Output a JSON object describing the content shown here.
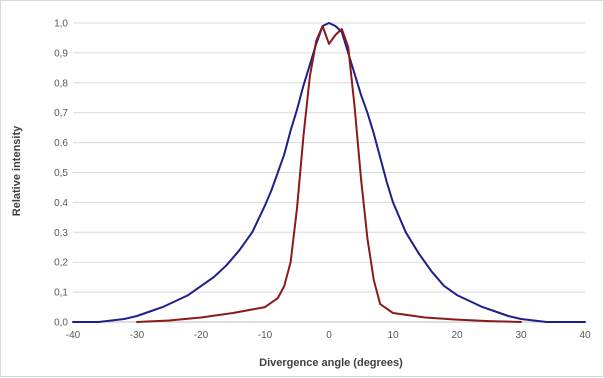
{
  "chart_data": {
    "type": "line",
    "title": "",
    "xlabel": "Divergence angle (degrees)",
    "ylabel": "Relative intensity",
    "xlim": [
      -40,
      40
    ],
    "ylim": [
      0,
      1
    ],
    "x_ticks": [
      "-40",
      "-30",
      "-20",
      "-10",
      "0",
      "10",
      "20",
      "30",
      "40"
    ],
    "y_ticks": [
      "0,0",
      "0,1",
      "0,2",
      "0,3",
      "0,4",
      "0,5",
      "0,6",
      "0,7",
      "0,8",
      "0,9",
      "1,0"
    ],
    "grid": "horizontal",
    "legend": "none",
    "series": [
      {
        "color": "#1f1f8c",
        "x": [
          -40,
          -36,
          -34,
          -32,
          -30,
          -28,
          -26,
          -24,
          -22,
          -20,
          -18,
          -16,
          -14,
          -12,
          -10,
          -9,
          -8,
          -7,
          -6,
          -5,
          -4,
          -3,
          -2,
          -1,
          0,
          1,
          2,
          3,
          4,
          5,
          6,
          7,
          8,
          9,
          10,
          12,
          14,
          16,
          18,
          20,
          22,
          24,
          26,
          28,
          30,
          32,
          34,
          36,
          40
        ],
        "y": [
          0.0,
          0.0,
          0.005,
          0.01,
          0.02,
          0.035,
          0.05,
          0.07,
          0.09,
          0.12,
          0.15,
          0.19,
          0.24,
          0.3,
          0.39,
          0.44,
          0.5,
          0.56,
          0.64,
          0.71,
          0.79,
          0.86,
          0.93,
          0.99,
          1.0,
          0.99,
          0.97,
          0.9,
          0.83,
          0.76,
          0.7,
          0.63,
          0.55,
          0.47,
          0.4,
          0.3,
          0.23,
          0.17,
          0.12,
          0.09,
          0.07,
          0.05,
          0.035,
          0.02,
          0.01,
          0.005,
          0.0,
          0.0,
          0.0
        ]
      },
      {
        "color": "#8b1a1a",
        "x": [
          -30,
          -25,
          -20,
          -15,
          -10,
          -8,
          -7,
          -6,
          -5,
          -4,
          -3,
          -2,
          -1,
          0,
          1,
          2,
          3,
          4,
          5,
          6,
          7,
          8,
          10,
          15,
          20,
          25,
          30
        ],
        "y": [
          0.0,
          0.005,
          0.015,
          0.03,
          0.05,
          0.08,
          0.12,
          0.2,
          0.38,
          0.62,
          0.82,
          0.94,
          0.99,
          0.93,
          0.96,
          0.98,
          0.92,
          0.72,
          0.48,
          0.28,
          0.14,
          0.06,
          0.03,
          0.015,
          0.008,
          0.003,
          0.0
        ]
      }
    ]
  }
}
